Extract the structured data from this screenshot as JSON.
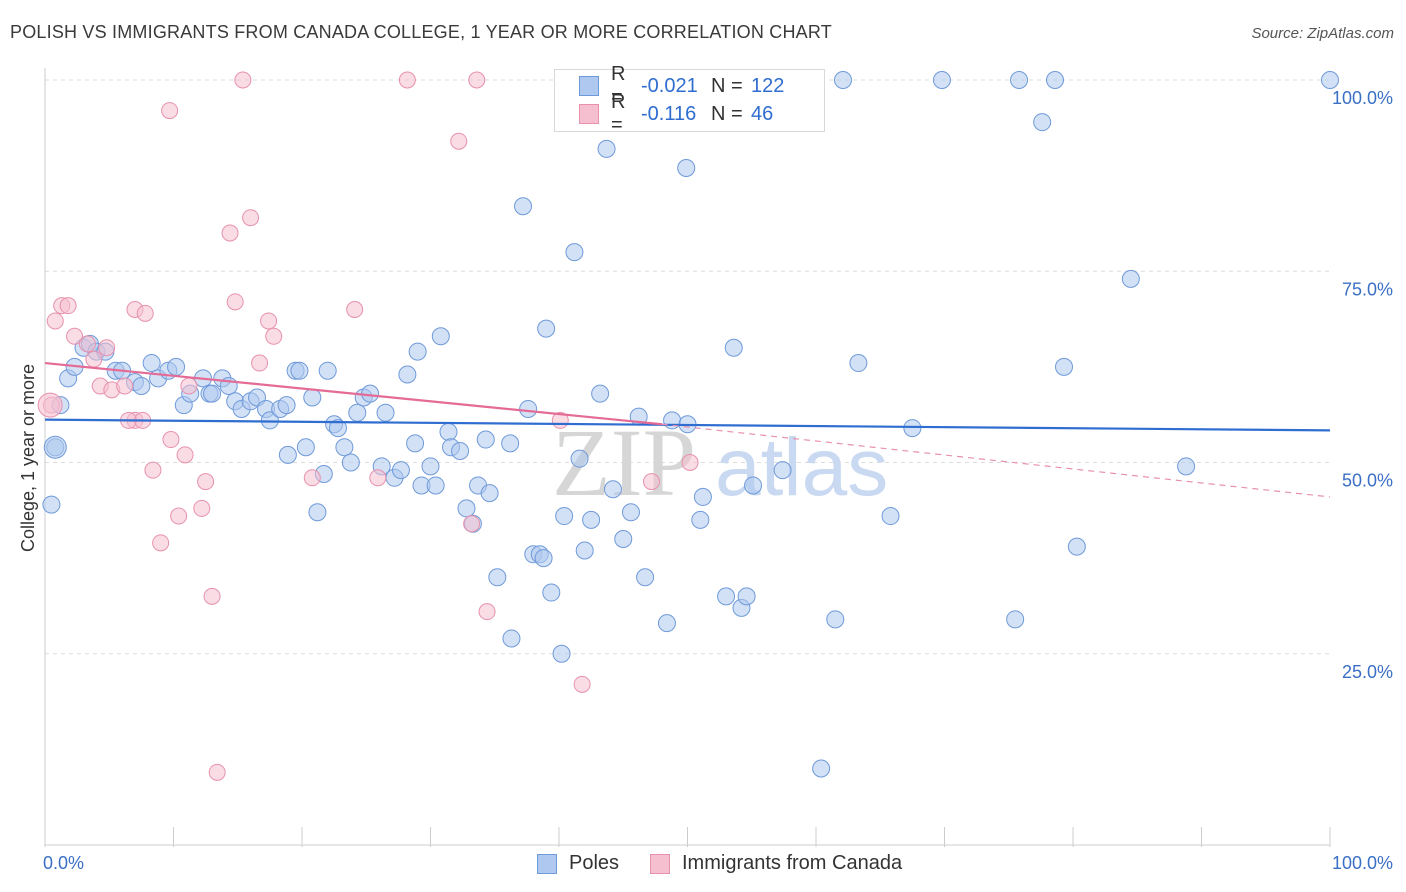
{
  "header": {
    "title": "POLISH VS IMMIGRANTS FROM CANADA COLLEGE, 1 YEAR OR MORE CORRELATION CHART",
    "source": "Source: ZipAtlas.com"
  },
  "watermark": {
    "part1": "ZIP",
    "part2": "atlas"
  },
  "legend": {
    "rows": [
      {
        "r_label": "R =",
        "r_value": "-0.021",
        "n_label": "N =",
        "n_value": "122",
        "color": "#aec8ef",
        "border": "#6f9ad9"
      },
      {
        "r_label": "R =",
        "r_value": "-0.116",
        "n_label": "N =",
        "n_value": "46",
        "color": "#f6bfd0",
        "border": "#e791ad"
      }
    ]
  },
  "bottom_legend": [
    {
      "label": "Poles",
      "color": "#aec8ef",
      "border": "#6f9ad9"
    },
    {
      "label": "Immigrants from Canada",
      "color": "#f6bfd0",
      "border": "#e791ad"
    }
  ],
  "chart_data": {
    "type": "scatter",
    "title": "POLISH VS IMMIGRANTS FROM CANADA COLLEGE, 1 YEAR OR MORE CORRELATION CHART",
    "xlabel": "",
    "ylabel": "College, 1 year or more",
    "xlim": [
      0,
      100
    ],
    "ylim": [
      0,
      100
    ],
    "x_ticks": [
      "0.0%",
      "100.0%"
    ],
    "y_ticks": [
      {
        "value": 25,
        "label": "25.0%"
      },
      {
        "value": 50,
        "label": "50.0%"
      },
      {
        "value": 75,
        "label": "75.0%"
      },
      {
        "value": 100,
        "label": "100.0%"
      }
    ],
    "grid": "horizontal dashed",
    "legend_position": "top-center",
    "series": [
      {
        "name": "Poles",
        "color": "#aec8ef",
        "stroke": "#6f9ad9",
        "trend": {
          "x": [
            0,
            100
          ],
          "y": [
            55.6,
            54.2
          ],
          "color": "#2f6dd0"
        },
        "points": [
          [
            0.5,
            44.5
          ],
          [
            0.8,
            52
          ],
          [
            1.2,
            57.5
          ],
          [
            1.8,
            61
          ],
          [
            2.3,
            62.5
          ],
          [
            3,
            65
          ],
          [
            3.5,
            65.5
          ],
          [
            4,
            64.5
          ],
          [
            4.7,
            64.5
          ],
          [
            5.5,
            62
          ],
          [
            6,
            62
          ],
          [
            7,
            60.5
          ],
          [
            7.5,
            60
          ],
          [
            8.3,
            63
          ],
          [
            8.8,
            61
          ],
          [
            9.6,
            62
          ],
          [
            10.2,
            62.5
          ],
          [
            10.8,
            57.5
          ],
          [
            11.3,
            59
          ],
          [
            12.3,
            61
          ],
          [
            12.8,
            59
          ],
          [
            13,
            59
          ],
          [
            13.8,
            61
          ],
          [
            14.3,
            60
          ],
          [
            14.8,
            58
          ],
          [
            15.3,
            57
          ],
          [
            16,
            58
          ],
          [
            16.5,
            58.5
          ],
          [
            17.2,
            57
          ],
          [
            17.5,
            55.5
          ],
          [
            18.3,
            57
          ],
          [
            18.8,
            57.5
          ],
          [
            18.9,
            51
          ],
          [
            19.5,
            62
          ],
          [
            19.8,
            62
          ],
          [
            20.3,
            52
          ],
          [
            20.8,
            58.5
          ],
          [
            21.2,
            43.5
          ],
          [
            21.7,
            48.5
          ],
          [
            22,
            62
          ],
          [
            22.5,
            55
          ],
          [
            22.8,
            54.5
          ],
          [
            23.3,
            52
          ],
          [
            23.8,
            50
          ],
          [
            24.3,
            56.5
          ],
          [
            24.8,
            58.5
          ],
          [
            25.3,
            59
          ],
          [
            26.2,
            49.5
          ],
          [
            26.5,
            56.5
          ],
          [
            27.2,
            48
          ],
          [
            27.7,
            49
          ],
          [
            28.2,
            61.5
          ],
          [
            28.8,
            52.5
          ],
          [
            29,
            64.5
          ],
          [
            29.3,
            47
          ],
          [
            30,
            49.5
          ],
          [
            30.4,
            47
          ],
          [
            30.8,
            66.5
          ],
          [
            31.4,
            54
          ],
          [
            31.6,
            52
          ],
          [
            32.3,
            51.5
          ],
          [
            32.8,
            44
          ],
          [
            33.3,
            42
          ],
          [
            33.7,
            47
          ],
          [
            34.3,
            53
          ],
          [
            34.6,
            46
          ],
          [
            35.2,
            35
          ],
          [
            36.2,
            52.5
          ],
          [
            36.3,
            27
          ],
          [
            37.2,
            83.5
          ],
          [
            37.6,
            57
          ],
          [
            38,
            38
          ],
          [
            38.5,
            38
          ],
          [
            38.8,
            37.5
          ],
          [
            39,
            67.5
          ],
          [
            39.4,
            33
          ],
          [
            40.2,
            25
          ],
          [
            40.4,
            43
          ],
          [
            41.2,
            77.5
          ],
          [
            41.6,
            50.5
          ],
          [
            42,
            38.5
          ],
          [
            42.5,
            42.5
          ],
          [
            43.2,
            59
          ],
          [
            43.7,
            91
          ],
          [
            44.2,
            46.5
          ],
          [
            45,
            40
          ],
          [
            45.6,
            43.5
          ],
          [
            46.2,
            56
          ],
          [
            46.7,
            35
          ],
          [
            48.4,
            29
          ],
          [
            48.8,
            55.5
          ],
          [
            49.9,
            88.5
          ],
          [
            50,
            55
          ],
          [
            51,
            42.5
          ],
          [
            51.2,
            45.5
          ],
          [
            53,
            32.5
          ],
          [
            53.6,
            65
          ],
          [
            54.2,
            31
          ],
          [
            54.6,
            32.5
          ],
          [
            55.1,
            47
          ],
          [
            57.4,
            49
          ],
          [
            60.4,
            10
          ],
          [
            61.5,
            29.5
          ],
          [
            62.1,
            100
          ],
          [
            63.3,
            63
          ],
          [
            65.8,
            43
          ],
          [
            67.5,
            54.5
          ],
          [
            69.8,
            100
          ],
          [
            75.8,
            100
          ],
          [
            77.6,
            94.5
          ],
          [
            75.5,
            29.5
          ],
          [
            78.6,
            100
          ],
          [
            79.3,
            62.5
          ],
          [
            80.3,
            39
          ],
          [
            84.5,
            74
          ],
          [
            88.8,
            49.5
          ],
          [
            100,
            100
          ],
          [
            55.9,
            100
          ],
          [
            52,
            100
          ],
          [
            47.8,
            100
          ]
        ]
      },
      {
        "name": "Immigrants from Canada",
        "color": "#f6bfd0",
        "stroke": "#e791ad",
        "trend": {
          "x": [
            0,
            48
          ],
          "y": [
            63,
            55
          ],
          "color": "#e46b96"
        },
        "points": [
          [
            0.5,
            57.5
          ],
          [
            0.8,
            68.5
          ],
          [
            1.3,
            70.5
          ],
          [
            1.8,
            70.5
          ],
          [
            2.3,
            66.5
          ],
          [
            3.3,
            65.5
          ],
          [
            3.8,
            63.5
          ],
          [
            4.3,
            60
          ],
          [
            4.8,
            65
          ],
          [
            5.2,
            59.5
          ],
          [
            6.2,
            60
          ],
          [
            7,
            55.5
          ],
          [
            6.5,
            55.5
          ],
          [
            7.6,
            55.5
          ],
          [
            7,
            70
          ],
          [
            7.8,
            69.5
          ],
          [
            8.4,
            49
          ],
          [
            9,
            39.5
          ],
          [
            9.7,
            96
          ],
          [
            9.8,
            53
          ],
          [
            10.4,
            43
          ],
          [
            10.9,
            51
          ],
          [
            11.2,
            60
          ],
          [
            12.2,
            44
          ],
          [
            12.5,
            47.5
          ],
          [
            13,
            32.5
          ],
          [
            13.4,
            9.5
          ],
          [
            14.4,
            80
          ],
          [
            14.8,
            71
          ],
          [
            15.4,
            100
          ],
          [
            16,
            82
          ],
          [
            16.7,
            63
          ],
          [
            17.4,
            68.5
          ],
          [
            17.8,
            66.5
          ],
          [
            20.8,
            48
          ],
          [
            24.1,
            70
          ],
          [
            25.9,
            48
          ],
          [
            28.2,
            100
          ],
          [
            32.2,
            92
          ],
          [
            33.2,
            42
          ],
          [
            33.6,
            100
          ],
          [
            34.4,
            30.5
          ],
          [
            40.1,
            55.5
          ],
          [
            41.8,
            21
          ],
          [
            47.2,
            47.5
          ],
          [
            50.2,
            50
          ]
        ]
      }
    ],
    "pink_dashed_extension": {
      "x": [
        48,
        100
      ],
      "y": [
        55,
        45.5
      ]
    }
  }
}
